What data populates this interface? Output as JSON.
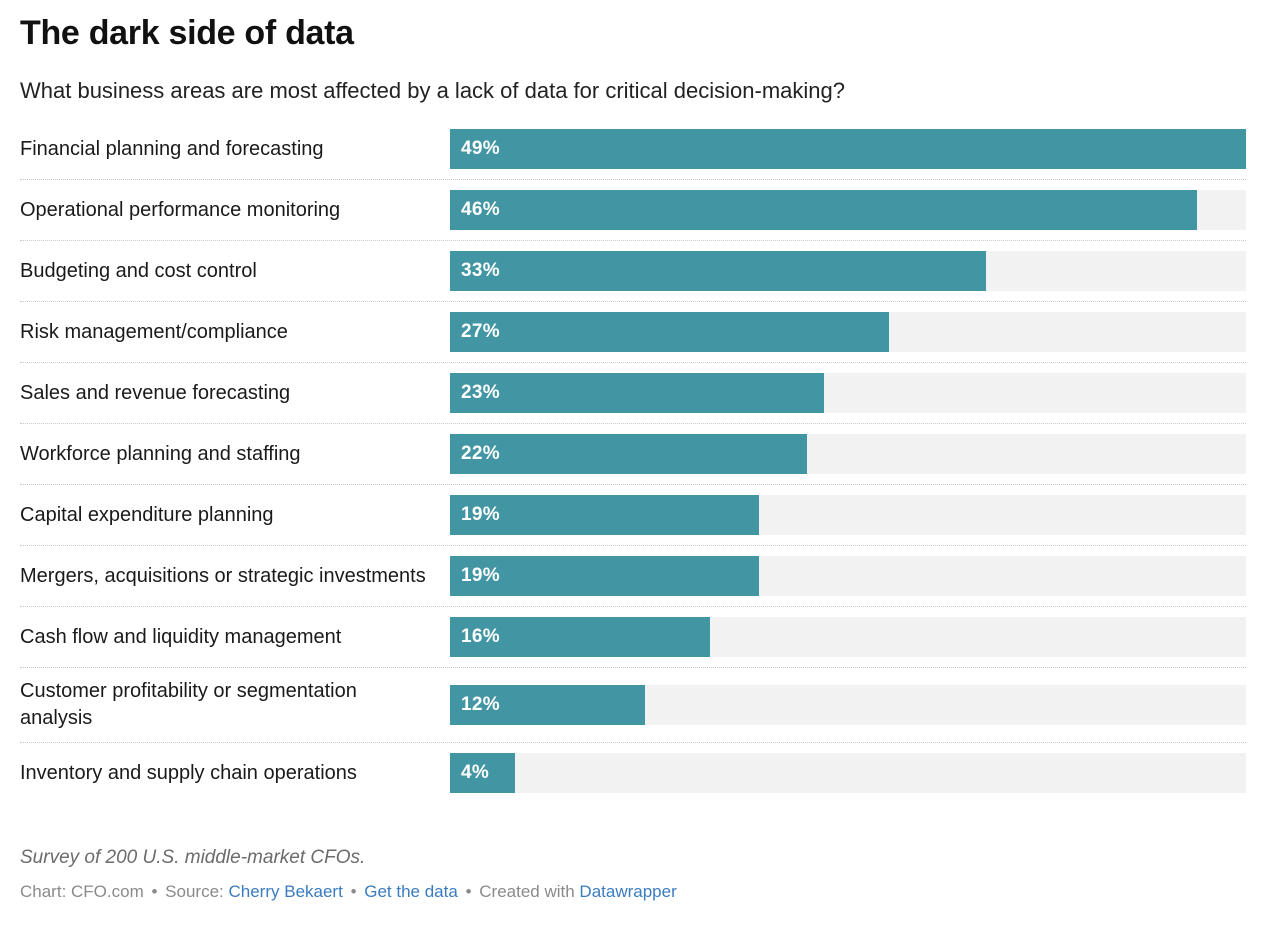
{
  "colors": {
    "bar": "#4295a3",
    "track": "#f2f2f2",
    "link": "#3a7cbf",
    "text": "#1a1a1a",
    "muted": "#8a8a8a"
  },
  "header": {
    "title": "The dark side of data",
    "subtitle": "What business areas are most affected by a lack of data for critical decision-making?"
  },
  "chart_data": {
    "type": "bar",
    "orientation": "horizontal",
    "title": "The dark side of data",
    "subtitle": "What business areas are most affected by a lack of data for critical decision-making?",
    "categories": [
      "Financial planning and forecasting",
      "Operational performance monitoring",
      "Budgeting and cost control",
      "Risk management/compliance",
      "Sales and revenue forecasting",
      "Workforce planning and staffing",
      "Capital expenditure planning",
      "Mergers, acquisitions or strategic investments",
      "Cash flow and liquidity management",
      "Customer profitability or segmentation analysis",
      "Inventory and supply chain operations"
    ],
    "values": [
      49,
      46,
      33,
      27,
      23,
      22,
      19,
      19,
      16,
      12,
      4
    ],
    "labels": [
      "49%",
      "46%",
      "33%",
      "27%",
      "23%",
      "22%",
      "19%",
      "19%",
      "16%",
      "12%",
      "4%"
    ],
    "value_unit": "%",
    "xlim": [
      0,
      49
    ],
    "grid": false,
    "legend": false,
    "bar_color": "#4295a3",
    "track_color": "#f2f2f2",
    "row_separator": "dotted"
  },
  "footer": {
    "note": "Survey of 200 U.S. middle-market CFOs.",
    "attribution": {
      "chart_credit": "Chart: CFO.com",
      "separator": "•",
      "source_label": "Source:",
      "source_link": "Cherry Bekaert",
      "get_data_link": "Get the data",
      "created_with_label": "Created with",
      "datawrapper_link": "Datawrapper"
    }
  }
}
